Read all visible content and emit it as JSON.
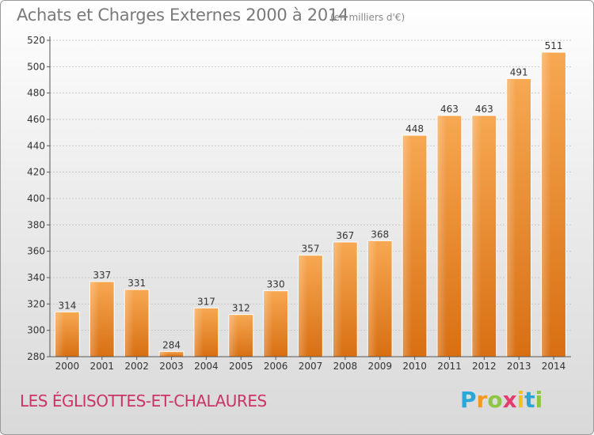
{
  "chart_data": {
    "type": "bar",
    "title": "Achats et Charges Externes 2000 à 2014",
    "subtitle": "(en milliers d'€)",
    "xlabel": "",
    "ylabel": "",
    "categories": [
      "2000",
      "2001",
      "2002",
      "2003",
      "2004",
      "2005",
      "2006",
      "2007",
      "2008",
      "2009",
      "2010",
      "2011",
      "2012",
      "2013",
      "2014"
    ],
    "values": [
      314,
      337,
      331,
      284,
      317,
      312,
      330,
      357,
      367,
      368,
      448,
      463,
      463,
      491,
      511
    ],
    "ylim": [
      280,
      520
    ],
    "yticks": [
      280,
      300,
      320,
      340,
      360,
      380,
      400,
      420,
      440,
      460,
      480,
      500,
      520
    ],
    "grid": true,
    "bar_color": "#f39a3c",
    "bar_color_dark": "#d86f12"
  },
  "location": "LES ÉGLISOTTES-ET-CHALAURES",
  "brand": {
    "p": "P",
    "r": "r",
    "o": "o",
    "x": "x",
    "i": "i",
    "t": "t",
    "i2": "i"
  }
}
